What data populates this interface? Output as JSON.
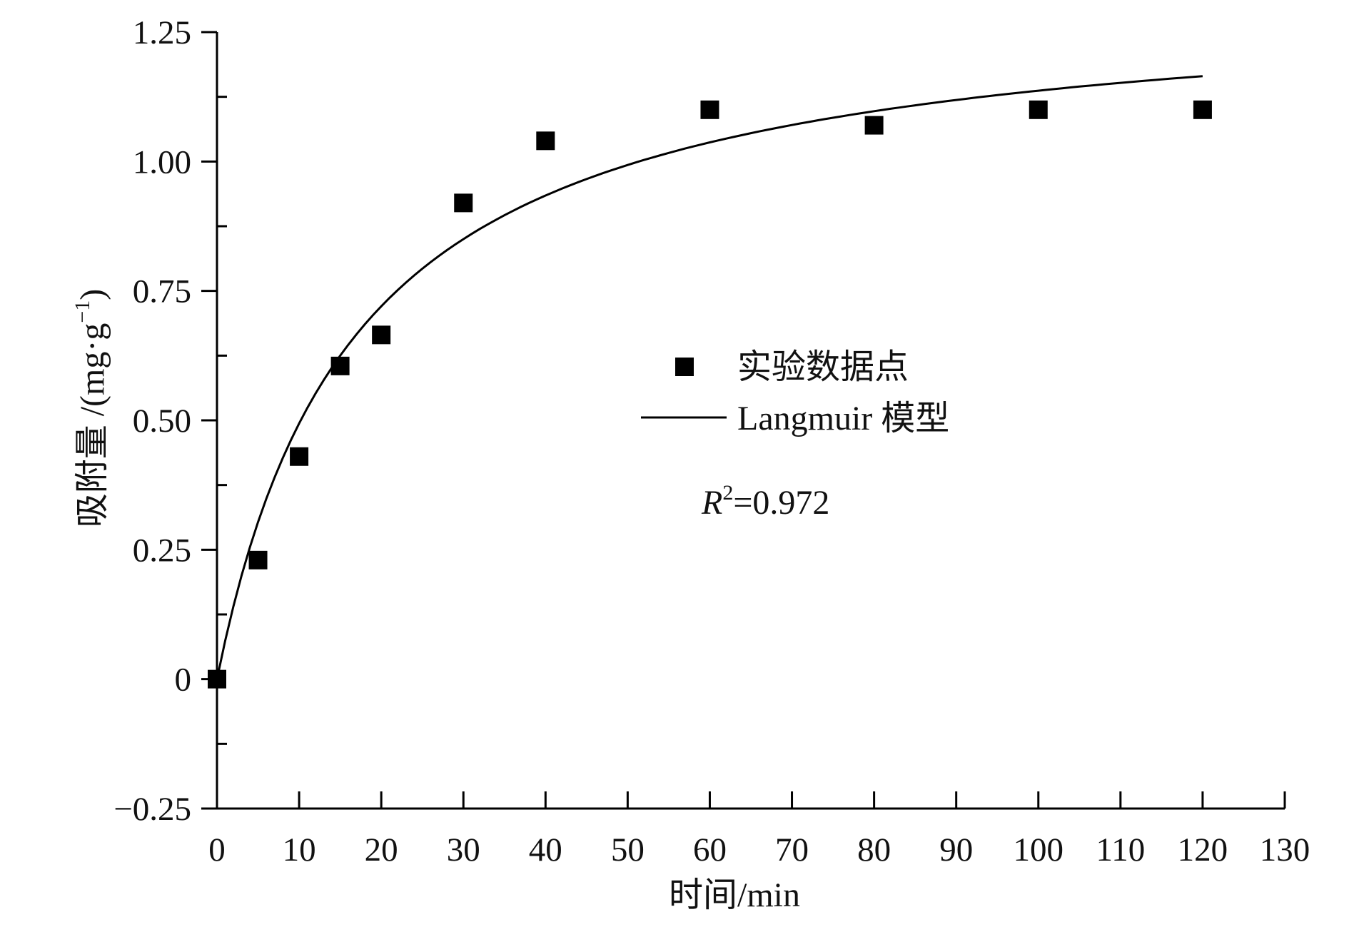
{
  "chart_data": {
    "type": "scatter",
    "xlabel": "时间/min",
    "ylabel": "吸附量 /(mg·g",
    "ylabel_sup": "−1",
    "ylabel_close": ")",
    "xlim": [
      0,
      130
    ],
    "ylim": [
      -0.25,
      1.25
    ],
    "xticks": [
      0,
      10,
      20,
      30,
      40,
      50,
      60,
      70,
      80,
      90,
      100,
      110,
      120,
      130
    ],
    "yticks": [
      -0.25,
      0,
      0.25,
      0.5,
      0.75,
      1.0,
      1.25
    ],
    "ytick_labels": [
      "−0.25",
      "0",
      "0.25",
      "0.50",
      "0.75",
      "1.00",
      "1.25"
    ],
    "grid": false,
    "legend_position": "center",
    "series": [
      {
        "name": "实验数据点",
        "kind": "points",
        "color": "#000000",
        "x": [
          0,
          5,
          10,
          15,
          20,
          30,
          40,
          60,
          80,
          100,
          120
        ],
        "y": [
          0,
          0.23,
          0.43,
          0.605,
          0.665,
          0.92,
          1.04,
          1.1,
          1.07,
          1.1,
          1.1
        ]
      },
      {
        "name": "Langmuir 模型",
        "kind": "line",
        "color": "#000000",
        "x": [
          0,
          2,
          5,
          10,
          15,
          20,
          30,
          40,
          50,
          60,
          70,
          80,
          90,
          100,
          110,
          120
        ],
        "y": [
          0,
          0.14,
          0.3,
          0.49,
          0.62,
          0.72,
          0.85,
          0.93,
          0.99,
          1.04,
          1.07,
          1.1,
          1.12,
          1.14,
          1.15,
          1.165
        ]
      }
    ],
    "annotation": {
      "r2_label": "R",
      "r2_sup": "2",
      "r2_value": "=0.972"
    }
  }
}
